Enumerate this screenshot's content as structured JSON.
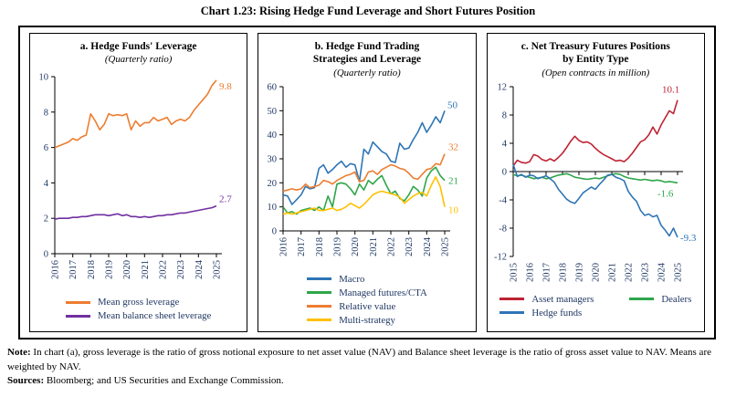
{
  "page_title": "Chart 1.23: Rising Hedge Fund Leverage and Short Futures Position",
  "colors": {
    "text_navy": "#203864",
    "axis_black": "#000000"
  },
  "note": {
    "note_label": "Note:",
    "note_text": " In chart (a), gross leverage is the ratio of gross notional exposure to net asset value (NAV) and Balance sheet leverage is the ratio of gross asset value to NAV. Means are weighted by NAV.",
    "sources_label": "Sources:",
    "sources_text": " Bloomberg; and US Securities and Exchange Commission."
  },
  "chart_data": [
    {
      "id": "a",
      "type": "line",
      "title_lines": [
        "a. Hedge Funds' Leverage"
      ],
      "subtitle": "(Quarterly ratio)",
      "x_frequency": "quarterly",
      "x_tick_labels": [
        "2016",
        "2017",
        "2018",
        "2019",
        "2020",
        "2021",
        "2022",
        "2023",
        "2024",
        "2025"
      ],
      "ylim": [
        0,
        10
      ],
      "yticks": [
        0,
        2,
        4,
        6,
        8,
        10
      ],
      "x_axis_at": 0,
      "legend_position": "bottom",
      "series": [
        {
          "name": "Mean gross leverage",
          "color": "#ED7D31",
          "end_label": "9.8",
          "values": [
            6.0,
            6.1,
            6.2,
            6.3,
            6.5,
            6.4,
            6.6,
            6.7,
            7.9,
            7.5,
            7.0,
            7.3,
            7.9,
            7.8,
            7.85,
            7.8,
            7.9,
            7.0,
            7.5,
            7.2,
            7.4,
            7.4,
            7.7,
            7.5,
            7.6,
            7.7,
            7.3,
            7.5,
            7.6,
            7.5,
            7.7,
            8.1,
            8.4,
            8.7,
            9.0,
            9.5,
            9.8
          ]
        },
        {
          "name": "Mean balance sheet leverage",
          "color": "#7030A0",
          "end_label": "2.7",
          "values": [
            1.95,
            2.0,
            2.0,
            2.0,
            2.05,
            2.05,
            2.1,
            2.1,
            2.15,
            2.2,
            2.2,
            2.2,
            2.15,
            2.2,
            2.25,
            2.15,
            2.2,
            2.1,
            2.1,
            2.05,
            2.1,
            2.05,
            2.1,
            2.15,
            2.15,
            2.2,
            2.2,
            2.25,
            2.3,
            2.3,
            2.35,
            2.4,
            2.45,
            2.5,
            2.55,
            2.6,
            2.7
          ]
        }
      ]
    },
    {
      "id": "b",
      "type": "line",
      "title_lines": [
        "b. Hedge Fund Trading",
        "Strategies and Leverage"
      ],
      "subtitle": "(Quarterly ratio)",
      "x_frequency": "quarterly",
      "x_tick_labels": [
        "2016",
        "2017",
        "2018",
        "2019",
        "2020",
        "2021",
        "2022",
        "2023",
        "2024",
        "2025"
      ],
      "ylim": [
        0,
        60
      ],
      "yticks": [
        0,
        10,
        20,
        30,
        40,
        50,
        60
      ],
      "x_axis_at": 0,
      "legend_position": "bottom",
      "series": [
        {
          "name": "Macro",
          "color": "#2E75B6",
          "end_label": "50",
          "values": [
            15,
            14.5,
            11,
            13,
            15,
            18.5,
            17.5,
            18,
            26,
            27.5,
            24,
            25.5,
            27.5,
            29,
            26.5,
            28,
            27.5,
            20.5,
            34,
            32,
            37,
            35,
            33,
            32,
            29,
            28.5,
            36.5,
            34,
            34.5,
            38,
            41,
            45,
            41,
            44,
            47.5,
            45,
            50
          ]
        },
        {
          "name": "Managed futures/CTA",
          "color": "#2EA64A",
          "end_label": "21",
          "values": [
            10,
            7.5,
            8,
            7,
            8.5,
            9,
            9.5,
            8.5,
            10,
            8.5,
            14.5,
            10,
            19.5,
            20,
            19.5,
            17.5,
            15,
            19.5,
            17,
            21,
            19.5,
            21.5,
            23,
            19,
            15.5,
            16.5,
            13.5,
            12.5,
            15,
            18.5,
            17,
            14.5,
            22,
            25,
            26.5,
            23,
            21
          ]
        },
        {
          "name": "Relative value",
          "color": "#ED7D31",
          "end_label": "32",
          "values": [
            16.5,
            17,
            17.5,
            17,
            17.5,
            19.5,
            18,
            18.5,
            19,
            21,
            20.5,
            19.5,
            21,
            22,
            23,
            23.5,
            24.5,
            20.5,
            21,
            24.5,
            25,
            23.5,
            25.5,
            26.5,
            27.5,
            27,
            26,
            25.5,
            24,
            22,
            21.5,
            23.5,
            25.5,
            26,
            28,
            27.5,
            32
          ]
        },
        {
          "name": "Multi-strategy",
          "color": "#FFC000",
          "end_label": "10",
          "values": [
            7,
            7.5,
            7,
            7.5,
            8,
            8.5,
            9,
            9.5,
            8.5,
            8.5,
            9,
            9.5,
            8.5,
            9,
            10,
            11.5,
            10.5,
            9.5,
            11,
            13,
            15,
            16,
            16.5,
            16,
            15.5,
            15,
            14,
            11.5,
            13,
            14.5,
            15.5,
            16,
            14.5,
            19,
            22.5,
            18.5,
            10
          ]
        }
      ]
    },
    {
      "id": "c",
      "type": "line",
      "title_lines": [
        "c. Net Treasury Futures Positions",
        "by Entity Type"
      ],
      "subtitle": "(Open contracts in million)",
      "x_frequency": "quarterly",
      "x_tick_labels": [
        "2015",
        "2016",
        "2017",
        "2018",
        "2019",
        "2020",
        "2021",
        "2022",
        "2023",
        "2024",
        "2025"
      ],
      "ylim": [
        -12,
        12
      ],
      "yticks": [
        -12,
        -8,
        -4,
        0,
        4,
        8,
        12
      ],
      "x_axis_at": 0,
      "legend_position": "bottom",
      "series": [
        {
          "name": "Asset managers",
          "color": "#BE2333",
          "end_label": "10.1",
          "values": [
            0.8,
            1.6,
            1.3,
            1.2,
            1.4,
            2.4,
            2.2,
            1.7,
            1.5,
            1.8,
            1.5,
            2.0,
            2.6,
            3.4,
            4.3,
            5.0,
            4.4,
            4.1,
            4.2,
            3.9,
            3.3,
            2.8,
            2.4,
            2.1,
            1.8,
            1.5,
            1.6,
            1.4,
            1.9,
            2.6,
            3.4,
            4.2,
            4.5,
            5.2,
            6.3,
            5.3,
            6.6,
            7.6,
            8.6,
            8.2,
            10.1
          ]
        },
        {
          "name": "Dealers",
          "color": "#2EA64A",
          "end_label": "-1.6",
          "values": [
            -0.4,
            -0.6,
            -0.5,
            -0.7,
            -0.8,
            -1.0,
            -0.9,
            -0.8,
            -1.0,
            -0.9,
            -0.7,
            -0.5,
            -0.4,
            -0.3,
            -0.5,
            -0.8,
            -0.9,
            -1.0,
            -1.1,
            -1.0,
            -0.9,
            -1.0,
            -0.8,
            -0.6,
            -0.4,
            -0.3,
            -0.4,
            -0.7,
            -0.9,
            -1.0,
            -1.1,
            -1.2,
            -1.1,
            -1.2,
            -1.3,
            -1.2,
            -1.3,
            -1.5,
            -1.4,
            -1.5,
            -1.6
          ]
        },
        {
          "name": "Hedge funds",
          "color": "#2E75B6",
          "end_label": "-9.3",
          "values": [
            1.0,
            -0.7,
            -0.4,
            -0.8,
            -0.5,
            -0.6,
            -1.0,
            -0.8,
            -0.6,
            -1.0,
            -1.5,
            -2.5,
            -3.2,
            -3.9,
            -4.3,
            -4.5,
            -3.8,
            -3.0,
            -2.6,
            -2.2,
            -2.5,
            -1.8,
            -1.2,
            -0.5,
            -0.4,
            -0.8,
            -1.0,
            -1.3,
            -2.8,
            -3.6,
            -4.2,
            -5.5,
            -6.2,
            -6.0,
            -6.4,
            -6.2,
            -7.6,
            -8.3,
            -9.1,
            -8.0,
            -9.3
          ]
        }
      ]
    }
  ]
}
